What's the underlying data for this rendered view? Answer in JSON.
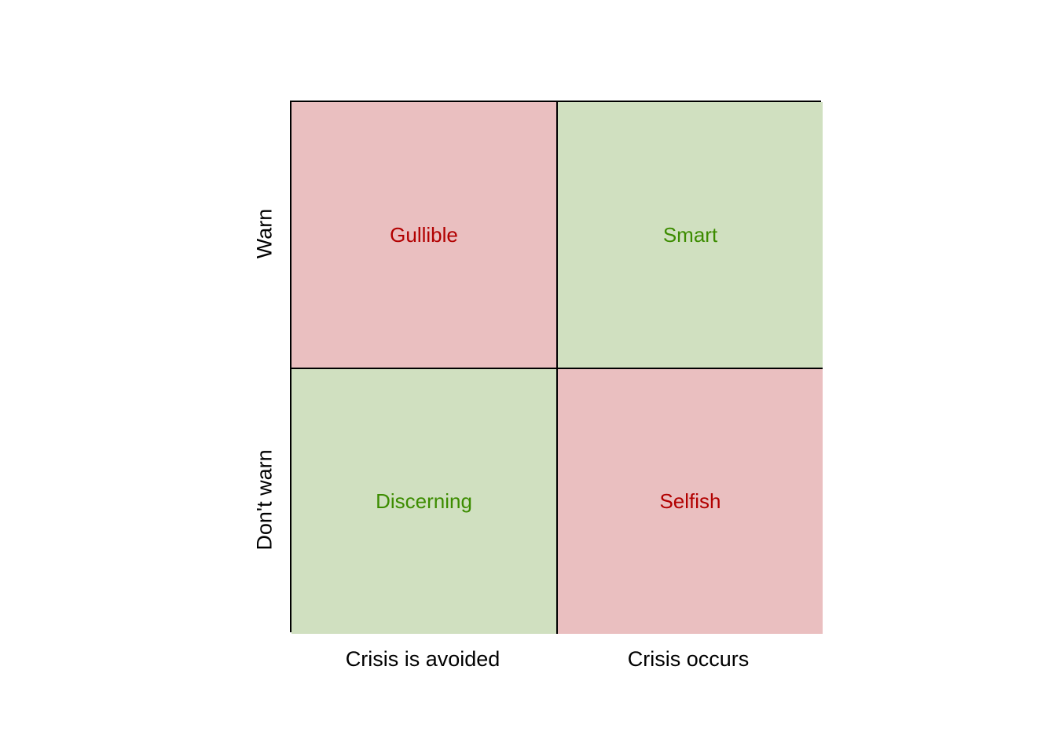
{
  "rows": [
    "Warn",
    "Don't warn"
  ],
  "columns": [
    "Crisis is avoided",
    "Crisis occurs"
  ],
  "cells": [
    {
      "label": "Gullible",
      "fill": "#eabfc0",
      "text_color": "#b20000"
    },
    {
      "label": "Smart",
      "fill": "#d0e0c0",
      "text_color": "#3c8c00"
    },
    {
      "label": "Discerning",
      "fill": "#d0e0c0",
      "text_color": "#3c8c00"
    },
    {
      "label": "Selfish",
      "fill": "#eabfc0",
      "text_color": "#b20000"
    }
  ]
}
